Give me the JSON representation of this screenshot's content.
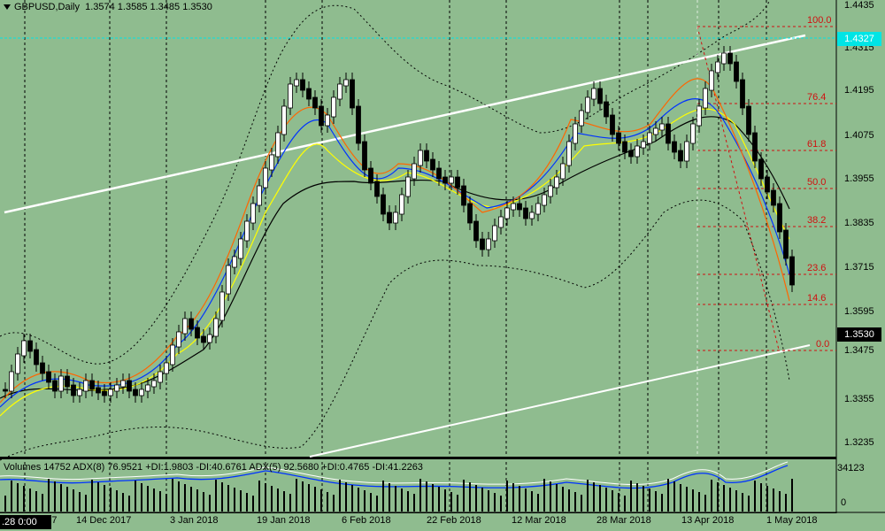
{
  "header": {
    "symbol_label": "GBPUSD,Daily",
    "ohlc": "1.3574 1.3585 1.3485 1.3530"
  },
  "indicator": {
    "text": "Volumes 14752  ADX(8) 76.9521 +DI:1.9803 -DI:40.6761  ADX(5) 92.5680 +DI:0.4765 -DI:41.2263",
    "scale_top": "34123",
    "scale_zero": "0"
  },
  "price_axis": [
    "1.4435",
    "1.4315",
    "1.4195",
    "1.4075",
    "1.3955",
    "1.3835",
    "1.3715",
    "1.3595",
    "1.3475",
    "1.3355",
    "1.3235"
  ],
  "current_price": "1.3530",
  "cyan_price": "1.4327",
  "fib_levels": [
    "100.0",
    "76.4",
    "61.8",
    "50.0",
    "38.2",
    "23.6",
    "14.6",
    "0.0"
  ],
  "time_axis": [
    "2017",
    "14 Dec 2017",
    "3 Jan 2018",
    "19 Jan 2018",
    "6 Feb 2018",
    "22 Feb 2018",
    "12 Mar 2018",
    "28 Mar 2018",
    "13 Apr 2018",
    "1 May 2018"
  ],
  "time_cursor": ".28 0:00",
  "colors": {
    "background": "#8fbc8f",
    "bull": "#ffffff",
    "bear": "#000000",
    "ma_fast": "#ff6600",
    "ma_mid": "#0033ff",
    "ma_slow": "#ffff00",
    "ma_long": "#000000",
    "channel": "#ffffff",
    "fib": "#d01010",
    "cyan": "#00e5e5"
  }
}
